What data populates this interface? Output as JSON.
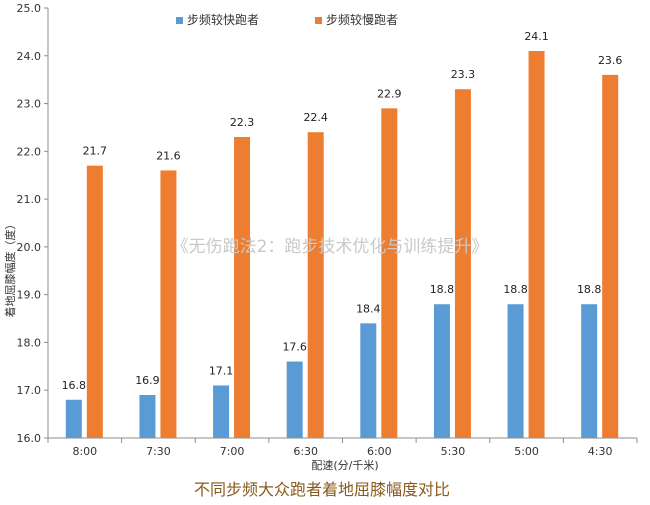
{
  "chart_data": {
    "type": "bar",
    "title": "",
    "xlabel": "配速(分/千米)",
    "ylabel": "着地屈膝幅度（度）",
    "ylim": [
      16.0,
      25.0
    ],
    "ytick_step": 1.0,
    "y_tick_labels": [
      "16.0",
      "17.0",
      "18.0",
      "19.0",
      "20.0",
      "21.0",
      "22.0",
      "23.0",
      "24.0",
      "25.0"
    ],
    "grid": false,
    "legend_position": "top",
    "categories": [
      "8:00",
      "7:30",
      "7:00",
      "6:30",
      "6:00",
      "5:30",
      "5:00",
      "4:30"
    ],
    "series": [
      {
        "name": "步频较快跑者",
        "color": "#5b9bd5",
        "values": [
          16.8,
          16.9,
          17.1,
          17.6,
          18.4,
          18.8,
          18.8,
          18.8
        ],
        "labels": [
          "16.8",
          "16.9",
          "17.1",
          "17.6",
          "18.4",
          "18.8",
          "18.8",
          "18.8"
        ]
      },
      {
        "name": "步频较慢跑者",
        "color": "#ed7d31",
        "values": [
          21.7,
          21.6,
          22.3,
          22.4,
          22.9,
          23.3,
          24.1,
          23.6
        ],
        "labels": [
          "21.7",
          "21.6",
          "22.3",
          "22.4",
          "22.9",
          "23.3",
          "24.1",
          "23.6"
        ]
      }
    ]
  },
  "watermark": "《无伤跑法2：跑步技术优化与训练提升》",
  "caption": "不同步频大众跑者着地屈膝幅度对比"
}
